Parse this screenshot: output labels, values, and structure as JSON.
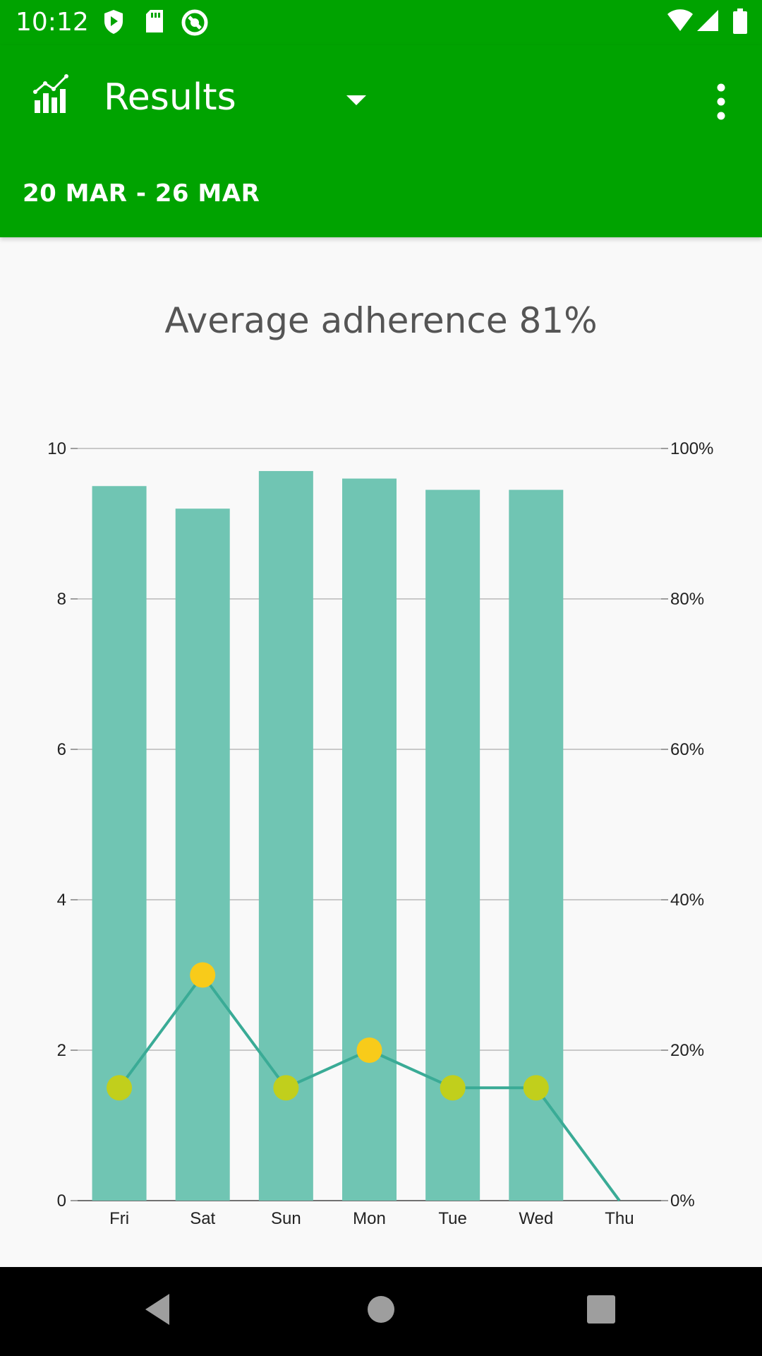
{
  "status_bar": {
    "time": "10:12",
    "icons": [
      "play-protect-icon",
      "sd-card-icon",
      "sync-icon",
      "wifi-icon",
      "signal-icon",
      "battery-icon"
    ]
  },
  "app_bar": {
    "title": "Results",
    "date_range": "20 MAR - 26 MAR",
    "icons": [
      "chart-icon",
      "dropdown-arrow-icon",
      "more-vert-icon"
    ]
  },
  "chart_title": "Average adherence 81%",
  "chart_data": {
    "type": "bar",
    "categories": [
      "Fri",
      "Sat",
      "Sun",
      "Mon",
      "Tue",
      "Wed",
      "Thu"
    ],
    "series": [
      {
        "type": "bar",
        "axis": "left",
        "values": [
          9.5,
          9.2,
          9.7,
          9.6,
          9.45,
          9.45,
          null
        ],
        "color": "#70c5b3"
      },
      {
        "type": "line",
        "axis": "left",
        "values": [
          1.5,
          3,
          1.5,
          2,
          1.5,
          1.5,
          0
        ],
        "color": "#3aab96",
        "point_colors": [
          "#c1cf1c",
          "#f8cb1a",
          "#c1cf1c",
          "#f8cb1a",
          "#c1cf1c",
          "#c1cf1c",
          null
        ]
      }
    ],
    "y_left": {
      "range": [
        0,
        10
      ],
      "ticks": [
        "0",
        "2",
        "4",
        "6",
        "8",
        "10"
      ]
    },
    "y_right": {
      "range": [
        0,
        100
      ],
      "ticks": [
        "0%",
        "20%",
        "40%",
        "60%",
        "80%",
        "100%"
      ]
    },
    "grid": true
  },
  "nav_bar": {
    "icons": [
      "back-icon",
      "home-icon",
      "recents-icon"
    ]
  }
}
